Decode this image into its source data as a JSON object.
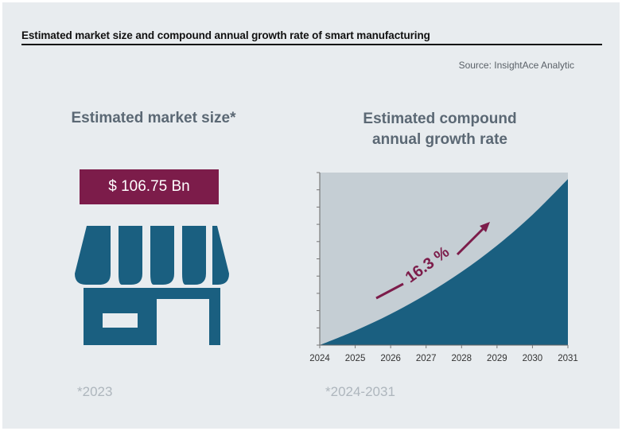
{
  "header": {
    "title": "Estimated market size and compound annual growth rate of smart manufacturing",
    "source": "Source: InsightAce Analytic"
  },
  "market_size": {
    "heading": "Estimated market size*",
    "value": "$ 106.75 Bn",
    "footnote": "*2023"
  },
  "growth": {
    "heading_line1": "Estimated compound",
    "heading_line2": "annual growth rate",
    "footnote": "*2024-2031"
  },
  "colors": {
    "accent": "#7c1c4a",
    "primary": "#1a5f80",
    "chart_bg": "#c5ced4",
    "background": "#e8ecef"
  },
  "chart_data": {
    "type": "area",
    "title": "Estimated compound annual growth rate",
    "x": [
      2024,
      2025,
      2026,
      2027,
      2028,
      2029,
      2030,
      2031
    ],
    "tick_labels": [
      "2024",
      "2025",
      "2026",
      "2027",
      "2028",
      "2029",
      "2030",
      "2031"
    ],
    "values": [
      0,
      0.163,
      0.352,
      0.572,
      0.828,
      1.126,
      1.473,
      1.876
    ],
    "ylim": [
      0,
      1.95
    ],
    "annotation": "16.3 %",
    "xlabel": "",
    "ylabel": ""
  }
}
